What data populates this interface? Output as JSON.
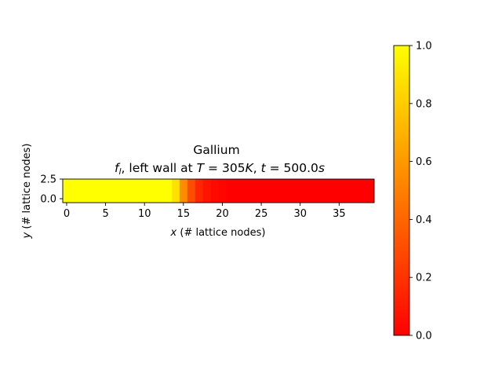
{
  "chart_data": {
    "type": "heatmap",
    "title": "Gallium",
    "subtitle_parts": {
      "f": "f",
      "l": "l",
      "mid": ", left wall at ",
      "T": "T",
      "T_value": " = 305",
      "K": "K",
      "sep": ", ",
      "t": "t",
      "t_value": " = 500.0",
      "s": "s"
    },
    "xlabel_parts": {
      "var": "x",
      "rest": " (# lattice nodes)"
    },
    "ylabel_parts": {
      "var": "y",
      "rest": " (# lattice nodes)"
    },
    "xlim": [
      -0.5,
      39.5
    ],
    "ylim": [
      -0.5,
      2.5
    ],
    "x_ticks": [
      "0",
      "5",
      "10",
      "15",
      "20",
      "25",
      "30",
      "35"
    ],
    "y_ticks": [
      "0.0",
      "2.5"
    ],
    "colormap": "autumn",
    "color_range": [
      0.0,
      1.0
    ],
    "colorbar_ticks": [
      "0.0",
      "0.2",
      "0.4",
      "0.6",
      "0.8",
      "1.0"
    ],
    "rows": 3,
    "columns": 40,
    "column_values": [
      1,
      1,
      1,
      1,
      1,
      1,
      1,
      1,
      1,
      1,
      1,
      1,
      1,
      1,
      0.88,
      0.55,
      0.3,
      0.15,
      0.08,
      0.04,
      0.02,
      0,
      0,
      0,
      0,
      0,
      0,
      0,
      0,
      0,
      0,
      0,
      0,
      0,
      0,
      0,
      0,
      0,
      0,
      0
    ]
  }
}
